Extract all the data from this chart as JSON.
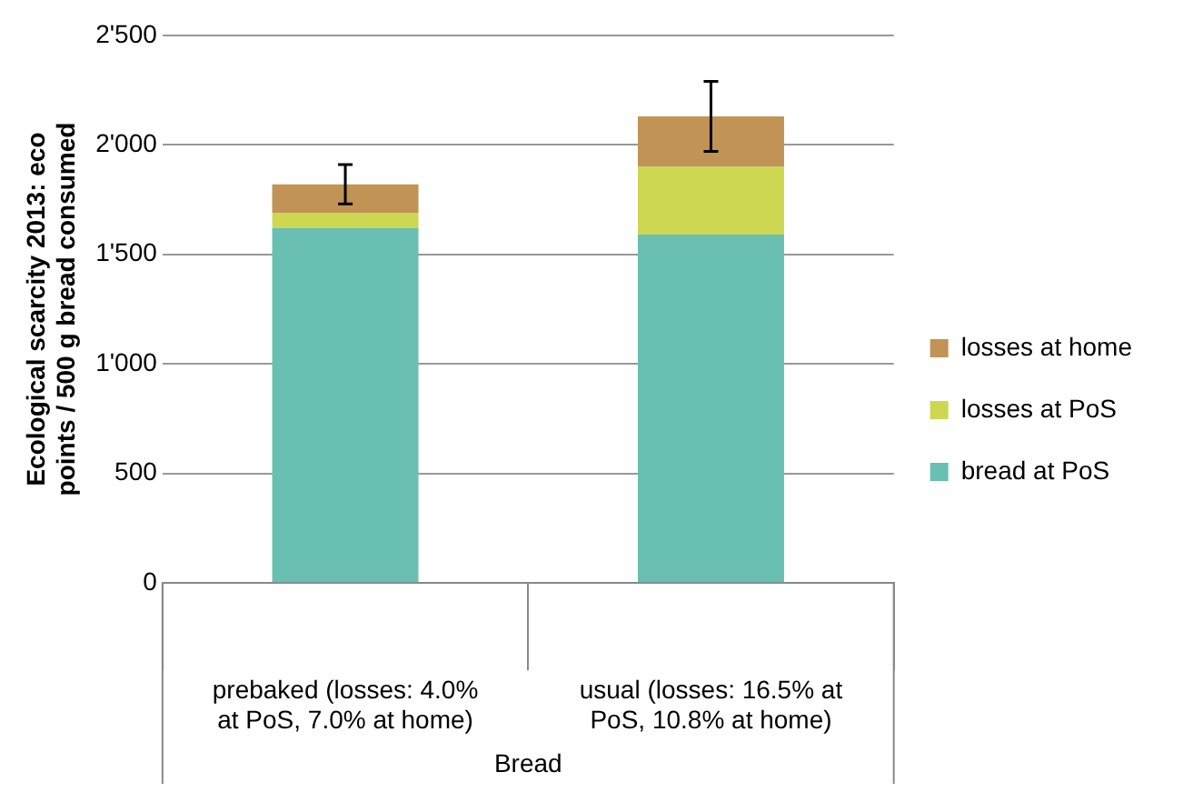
{
  "chart_data": {
    "type": "bar",
    "stacked": true,
    "ylabel": "Ecological scarcity 2013: eco points / 500 g bread consumed",
    "xlabel": "Bread",
    "categories": [
      "prebaked (losses: 4.0% at PoS, 7.0% at home)",
      "usual (losses: 16.5% at PoS, 10.8% at home)"
    ],
    "series": [
      {
        "name": "bread at PoS",
        "color": "#68bfb2",
        "values": [
          1620,
          1590
        ]
      },
      {
        "name": "losses at PoS",
        "color": "#cdd751",
        "values": [
          70,
          310
        ]
      },
      {
        "name": "losses at home",
        "color": "#c19354",
        "values": [
          130,
          230
        ],
        "errors": [
          90,
          160
        ]
      }
    ],
    "ylim": [
      0,
      2500
    ],
    "yticks": [
      0,
      500,
      {
        "value": 1000,
        "label": "1'000"
      },
      {
        "value": 1500,
        "label": "1'500"
      },
      {
        "value": 2000,
        "label": "2'000"
      },
      {
        "value": 2500,
        "label": "2'500"
      }
    ],
    "grid": "y",
    "legend": "right"
  }
}
